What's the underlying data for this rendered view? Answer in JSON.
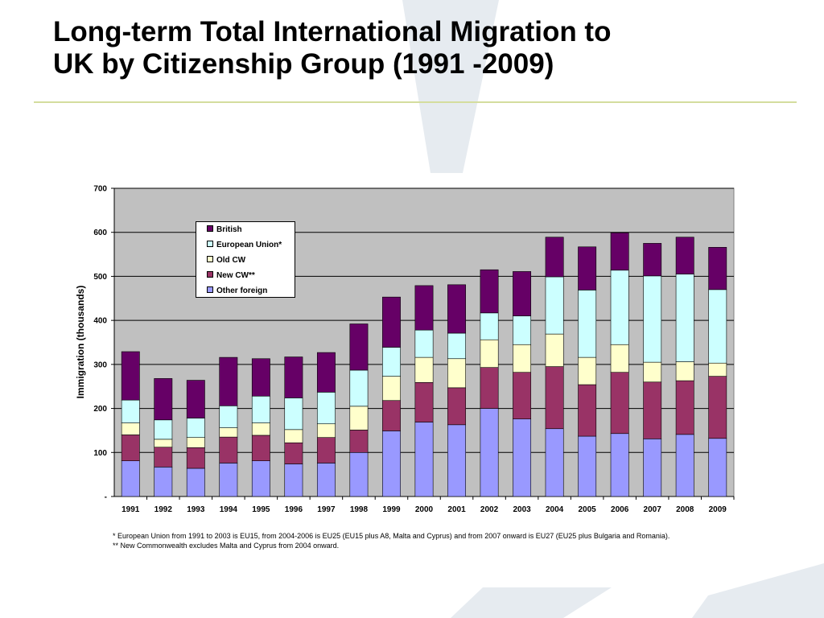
{
  "slide": {
    "title": "Long-term Total International Migration to\nUK by Citizenship Group (1991 -2009)"
  },
  "colors": {
    "plot_background": "#c0c0c0",
    "title_rule": "#d4dd9e",
    "decor": "#e6ebf0"
  },
  "chart_data": {
    "type": "bar",
    "stacked": true,
    "title": "",
    "xlabel": "",
    "ylabel": "Immigration (thousands)",
    "ylim": [
      0,
      700
    ],
    "yticks": [
      0,
      100,
      200,
      300,
      400,
      500,
      600,
      700
    ],
    "ytick_labels": [
      "-",
      "100",
      "200",
      "300",
      "400",
      "500",
      "600",
      "700"
    ],
    "grid": true,
    "legend_position": "top-left",
    "categories": [
      "1991",
      "1992",
      "1993",
      "1994",
      "1995",
      "1996",
      "1997",
      "1998",
      "1999",
      "2000",
      "2001",
      "2002",
      "2003",
      "2004",
      "2005",
      "2006",
      "2007",
      "2008",
      "2009"
    ],
    "series": [
      {
        "name": "Other foreign",
        "color": "#9999ff",
        "values": [
          81,
          67,
          64,
          76,
          81,
          74,
          76,
          100,
          149,
          169,
          163,
          200,
          176,
          154,
          137,
          143,
          131,
          141,
          132
        ]
      },
      {
        "name": "New CW**",
        "color": "#993366",
        "values": [
          59,
          45,
          47,
          59,
          58,
          48,
          58,
          51,
          69,
          90,
          84,
          93,
          106,
          141,
          117,
          139,
          129,
          122,
          141
        ]
      },
      {
        "name": "Old CW",
        "color": "#ffffcc",
        "values": [
          27,
          18,
          23,
          21,
          28,
          30,
          31,
          54,
          55,
          57,
          66,
          63,
          63,
          74,
          62,
          63,
          45,
          43,
          30
        ]
      },
      {
        "name": "European Union*",
        "color": "#ccffff",
        "values": [
          52,
          44,
          44,
          50,
          61,
          72,
          72,
          82,
          66,
          62,
          58,
          61,
          65,
          130,
          153,
          169,
          196,
          199,
          167
        ]
      },
      {
        "name": "British",
        "color": "#660066",
        "values": [
          110,
          94,
          86,
          110,
          85,
          93,
          90,
          105,
          114,
          101,
          110,
          98,
          101,
          90,
          98,
          85,
          74,
          84,
          96
        ]
      }
    ],
    "legend_order": [
      "British",
      "European Union*",
      "Old CW",
      "New CW**",
      "Other foreign"
    ]
  },
  "footnotes": [
    "* European Union from 1991 to 2003 is EU15, from 2004-2006 is EU25 (EU15 plus A8, Malta and Cyprus) and from 2007 onward is EU27 (EU25 plus Bulgaria and Romania).",
    "** New Commonwealth excludes Malta and Cyprus from 2004 onward."
  ]
}
